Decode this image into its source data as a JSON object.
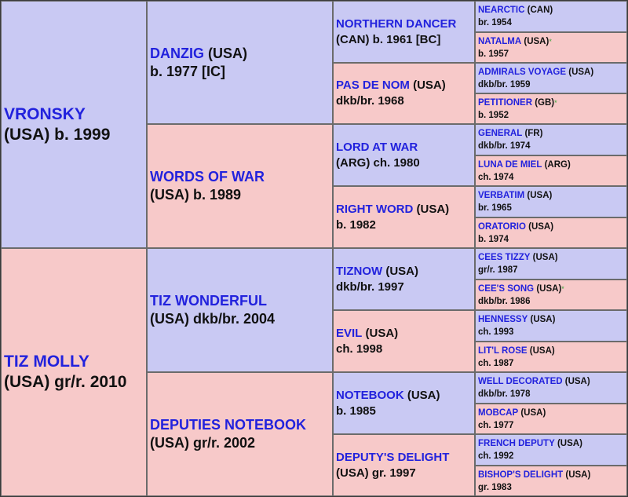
{
  "pedigree": {
    "sire": {
      "name": "VRONSKY",
      "country": "(USA)",
      "info": "b. 1999"
    },
    "dam": {
      "name": "TIZ MOLLY",
      "country": "(USA)",
      "info": "gr/r. 2010"
    },
    "grandparents": [
      {
        "name": "DANZIG",
        "country": "(USA)",
        "info": "b. 1977 [IC]"
      },
      {
        "name": "WORDS OF WAR",
        "country": "",
        "info": "(USA) b. 1989"
      },
      {
        "name": "TIZ WONDERFUL",
        "country": "",
        "info": "(USA) dkb/br. 2004"
      },
      {
        "name": "DEPUTIES NOTEBOOK",
        "country": "",
        "info": "(USA) gr/r. 2002"
      }
    ],
    "great_grandparents": [
      {
        "name": "NORTHERN DANCER",
        "country": "",
        "info": "(CAN) b. 1961 [BC]"
      },
      {
        "name": "PAS DE NOM",
        "country": "(USA)",
        "info": "dkb/br. 1968"
      },
      {
        "name": "LORD AT WAR",
        "country": "",
        "info": "(ARG) ch. 1980"
      },
      {
        "name": "RIGHT WORD",
        "country": "(USA)",
        "info": "b. 1982"
      },
      {
        "name": "TIZNOW",
        "country": "(USA)",
        "info": "dkb/br. 1997"
      },
      {
        "name": "EVIL",
        "country": "(USA)",
        "info": "ch. 1998"
      },
      {
        "name": "NOTEBOOK",
        "country": "(USA)",
        "info": "b. 1985"
      },
      {
        "name": "DEPUTY'S DELIGHT",
        "country": "",
        "info": "(USA) gr. 1997"
      }
    ],
    "great_great_grandparents": [
      {
        "name": "NEARCTIC",
        "country": "(CAN)",
        "info": "br. 1954",
        "star": ""
      },
      {
        "name": "NATALMA",
        "country": "(USA)",
        "info": "b. 1957",
        "star": "*"
      },
      {
        "name": "ADMIRALS VOYAGE",
        "country": "(USA)",
        "info": "dkb/br. 1959",
        "star": ""
      },
      {
        "name": "PETITIONER",
        "country": "(GB)",
        "info": "b. 1952",
        "star": "*"
      },
      {
        "name": "GENERAL",
        "country": "(FR)",
        "info": "dkb/br. 1974",
        "star": ""
      },
      {
        "name": "LUNA DE MIEL",
        "country": "(ARG)",
        "info": "ch. 1974",
        "star": ""
      },
      {
        "name": "VERBATIM",
        "country": "(USA)",
        "info": "br. 1965",
        "star": ""
      },
      {
        "name": "ORATORIO",
        "country": "(USA)",
        "info": "b. 1974",
        "star": ""
      },
      {
        "name": "CEES TIZZY",
        "country": "(USA)",
        "info": "gr/r. 1987",
        "star": ""
      },
      {
        "name": "CEE'S SONG",
        "country": "(USA)",
        "info": "dkb/br. 1986",
        "star": "*"
      },
      {
        "name": "HENNESSY",
        "country": "(USA)",
        "info": "ch. 1993",
        "star": ""
      },
      {
        "name": "LIT'L ROSE",
        "country": "(USA)",
        "info": "ch. 1987",
        "star": ""
      },
      {
        "name": "WELL DECORATED",
        "country": "(USA)",
        "info": "dkb/br. 1978",
        "star": ""
      },
      {
        "name": "MOBCAP",
        "country": "(USA)",
        "info": "ch. 1977",
        "star": ""
      },
      {
        "name": "FRENCH DEPUTY",
        "country": "(USA)",
        "info": "ch. 1992",
        "star": ""
      },
      {
        "name": "BISHOP'S DELIGHT",
        "country": "(USA)",
        "info": "gr. 1983",
        "star": ""
      }
    ]
  },
  "colors": {
    "male": "#c9c9f3",
    "female": "#f7c9c9",
    "name_text": "#2222dd",
    "star": "#3aa33a"
  }
}
